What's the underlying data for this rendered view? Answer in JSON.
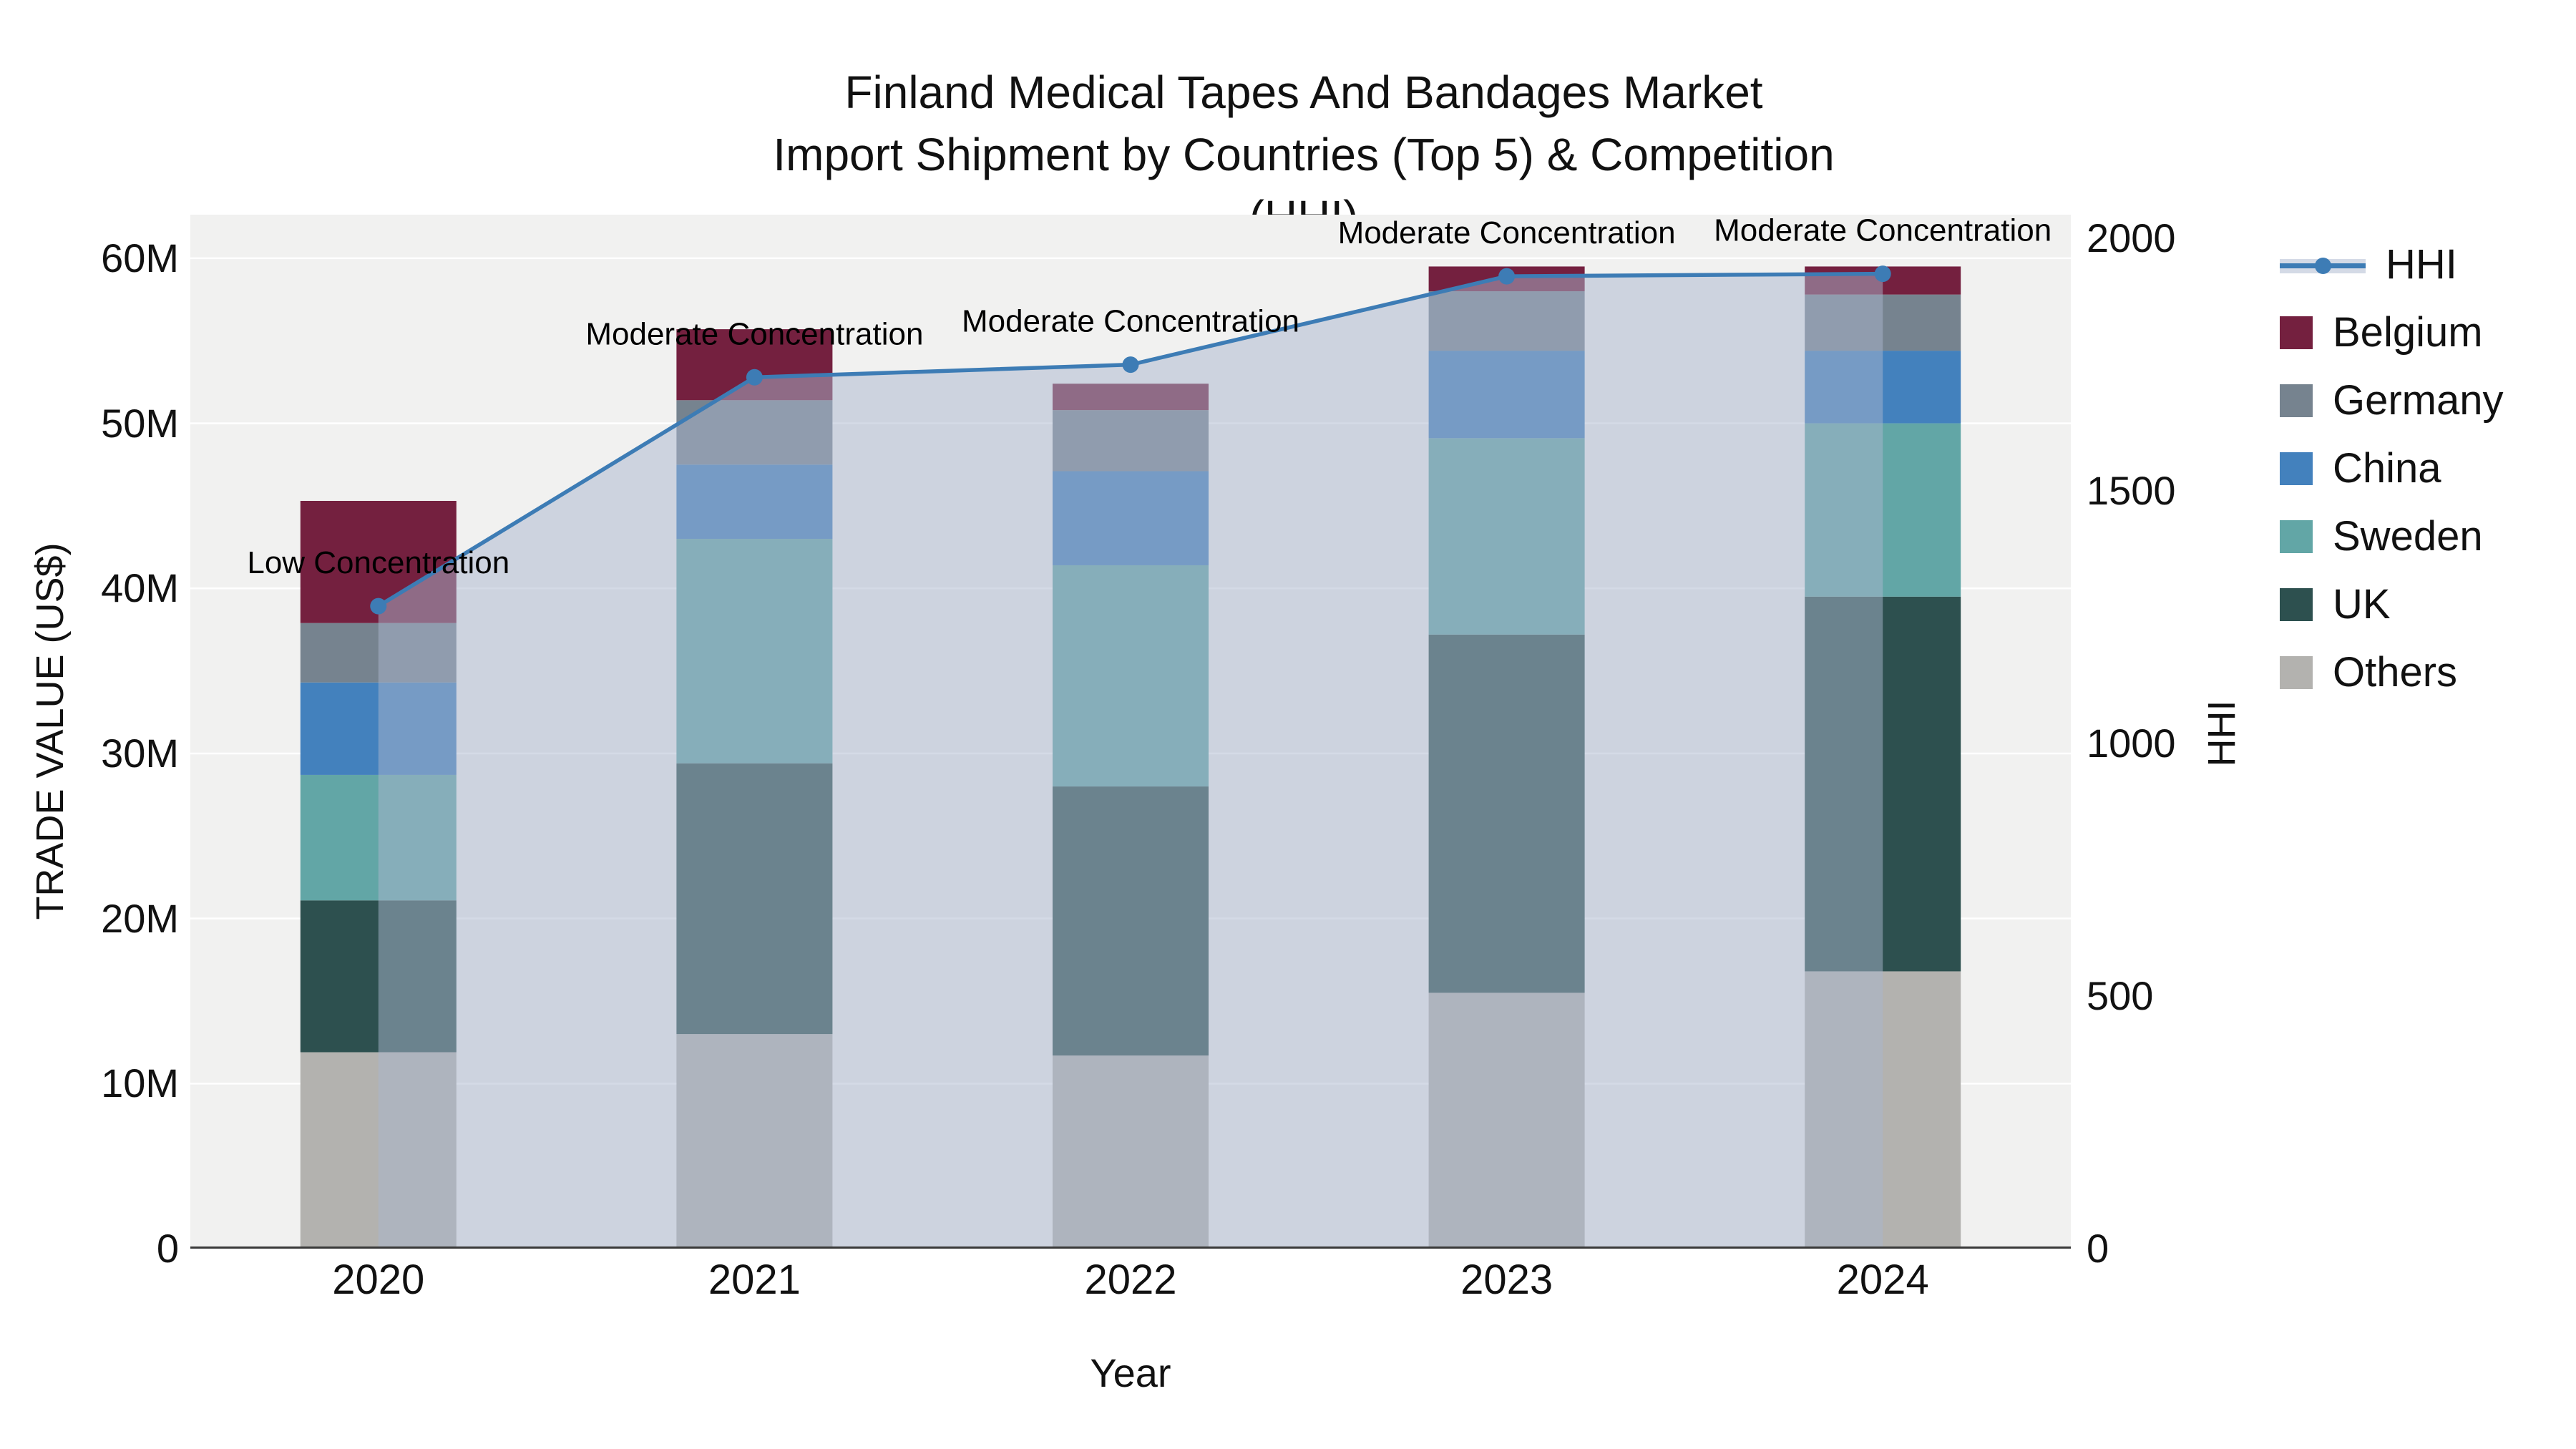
{
  "chart_data": {
    "type": "bar",
    "subtype": "stacked-bar-with-line",
    "title": "Finland Medical Tapes And Bandages Market",
    "subtitle": "Import Shipment by Countries (Top 5) & Competition (HHI)",
    "xlabel": "Year",
    "ylabel_left": "TRADE VALUE (US$)",
    "ylabel_right": "HHI",
    "categories": [
      "2020",
      "2021",
      "2022",
      "2023",
      "2024"
    ],
    "series": [
      {
        "name": "Others",
        "color": "#b3b2af",
        "values": [
          11.9,
          13.0,
          11.7,
          15.5,
          16.8
        ]
      },
      {
        "name": "UK",
        "color": "#2d504f",
        "values": [
          9.2,
          16.4,
          16.3,
          21.7,
          22.7
        ]
      },
      {
        "name": "Sweden",
        "color": "#62a6a6",
        "values": [
          7.6,
          13.6,
          13.4,
          11.9,
          10.5
        ]
      },
      {
        "name": "China",
        "color": "#4381bd",
        "values": [
          5.6,
          4.5,
          5.7,
          5.3,
          4.4
        ]
      },
      {
        "name": "Germany",
        "color": "#76838f",
        "values": [
          3.6,
          3.9,
          3.7,
          3.6,
          3.4
        ]
      },
      {
        "name": "Belgium",
        "color": "#74203f",
        "values": [
          7.4,
          4.3,
          1.6,
          1.5,
          1.7
        ]
      }
    ],
    "bar_totals_millions": [
      45.3,
      55.7,
      52.4,
      59.5,
      59.5
    ],
    "line_series": {
      "name": "HHI",
      "color": "#3d7cb5",
      "fill_color": "rgba(170,182,205,0.5)",
      "values": [
        1272,
        1725,
        1750,
        1925,
        1930
      ]
    },
    "annotations": [
      "Low Concentration",
      "Moderate Concentration",
      "Moderate Concentration",
      "Moderate Concentration",
      "Moderate Concentration"
    ],
    "y_axis_left": {
      "tick_values": [
        0,
        10,
        20,
        30,
        40,
        50,
        60
      ],
      "tick_labels": [
        "0",
        "10M",
        "20M",
        "30M",
        "40M",
        "50M",
        "60M"
      ],
      "max": 62.64,
      "unit": "millions USD"
    },
    "y_axis_right": {
      "tick_values": [
        0,
        500,
        1000,
        1500,
        2000
      ],
      "tick_labels": [
        "0",
        "500",
        "1000",
        "1500",
        "2000"
      ],
      "max": 2047
    },
    "legend_order": [
      "HHI",
      "Belgium",
      "Germany",
      "China",
      "Sweden",
      "UK",
      "Others"
    ],
    "legend_position": "right",
    "grid": true,
    "plot_bg_color": "#f1f1f0",
    "gridline_color": "#ffffff",
    "axis_line_color": "#3a3a3a"
  }
}
